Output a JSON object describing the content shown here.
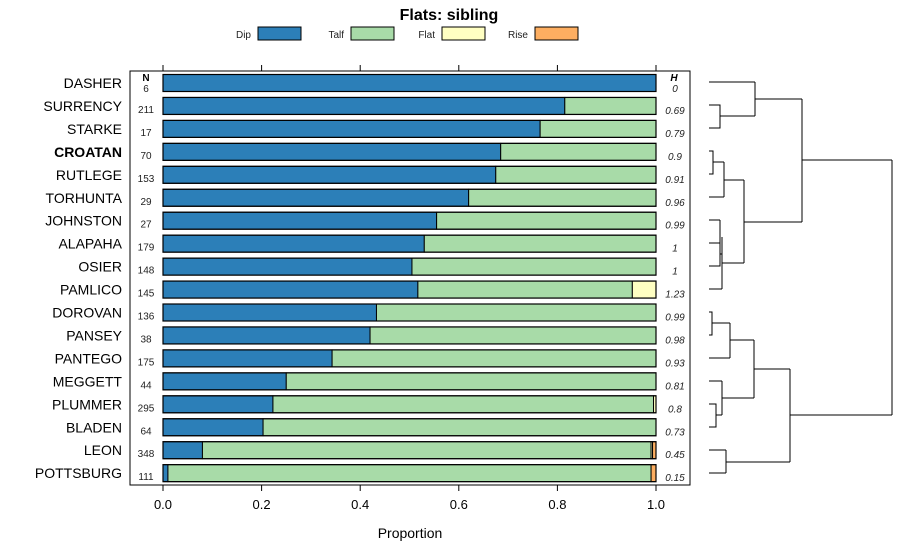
{
  "chart_data": {
    "type": "bar",
    "orientation": "horizontal",
    "stacked": true,
    "title": "Flats: sibling",
    "xlabel": "Proportion",
    "ylabel": "",
    "xlim": [
      0,
      1
    ],
    "x_ticks": [
      "0.0",
      "0.2",
      "0.4",
      "0.6",
      "0.8",
      "1.0"
    ],
    "x_tick_values": [
      0,
      0.2,
      0.4,
      0.6,
      0.8,
      1.0
    ],
    "legend_position": "top",
    "n_header": "N",
    "h_header": "H",
    "categories": [
      "DASHER",
      "SURRENCY",
      "STARKE",
      "CROATAN",
      "RUTLEGE",
      "TORHUNTA",
      "JOHNSTON",
      "ALAPAHA",
      "OSIER",
      "PAMLICO",
      "DOROVAN",
      "PANSEY",
      "PANTEGO",
      "MEGGETT",
      "PLUMMER",
      "BLADEN",
      "LEON",
      "POTTSBURG"
    ],
    "highlight_category": "CROATAN",
    "n_values": [
      "6",
      "211",
      "17",
      "70",
      "153",
      "29",
      "27",
      "179",
      "148",
      "145",
      "136",
      "38",
      "175",
      "44",
      "295",
      "64",
      "348",
      "111"
    ],
    "h_values": [
      "0",
      "0.69",
      "0.79",
      "0.9",
      "0.91",
      "0.96",
      "0.99",
      "1",
      "1",
      "1.23",
      "0.99",
      "0.98",
      "0.93",
      "0.81",
      "0.8",
      "0.73",
      "0.45",
      "0.15"
    ],
    "series": [
      {
        "name": "Dip",
        "color": "#2c7fb8",
        "values": [
          1.0,
          0.815,
          0.765,
          0.685,
          0.675,
          0.62,
          0.555,
          0.53,
          0.505,
          0.517,
          0.433,
          0.42,
          0.343,
          0.25,
          0.223,
          0.203,
          0.08,
          0.01
        ]
      },
      {
        "name": "Talf",
        "color": "#a8dba8",
        "values": [
          0.0,
          0.185,
          0.235,
          0.315,
          0.325,
          0.38,
          0.445,
          0.47,
          0.495,
          0.435,
          0.567,
          0.58,
          0.657,
          0.75,
          0.772,
          0.797,
          0.91,
          0.98
        ]
      },
      {
        "name": "Flat",
        "color": "#ffffc2",
        "values": [
          0,
          0,
          0,
          0,
          0,
          0,
          0,
          0,
          0,
          0.048,
          0,
          0,
          0,
          0,
          0.005,
          0,
          0.003,
          0
        ]
      },
      {
        "name": "Rise",
        "color": "#fdae61",
        "values": [
          0,
          0,
          0,
          0,
          0,
          0,
          0,
          0,
          0,
          0,
          0,
          0,
          0,
          0,
          0,
          0,
          0.007,
          0.01
        ]
      }
    ]
  }
}
